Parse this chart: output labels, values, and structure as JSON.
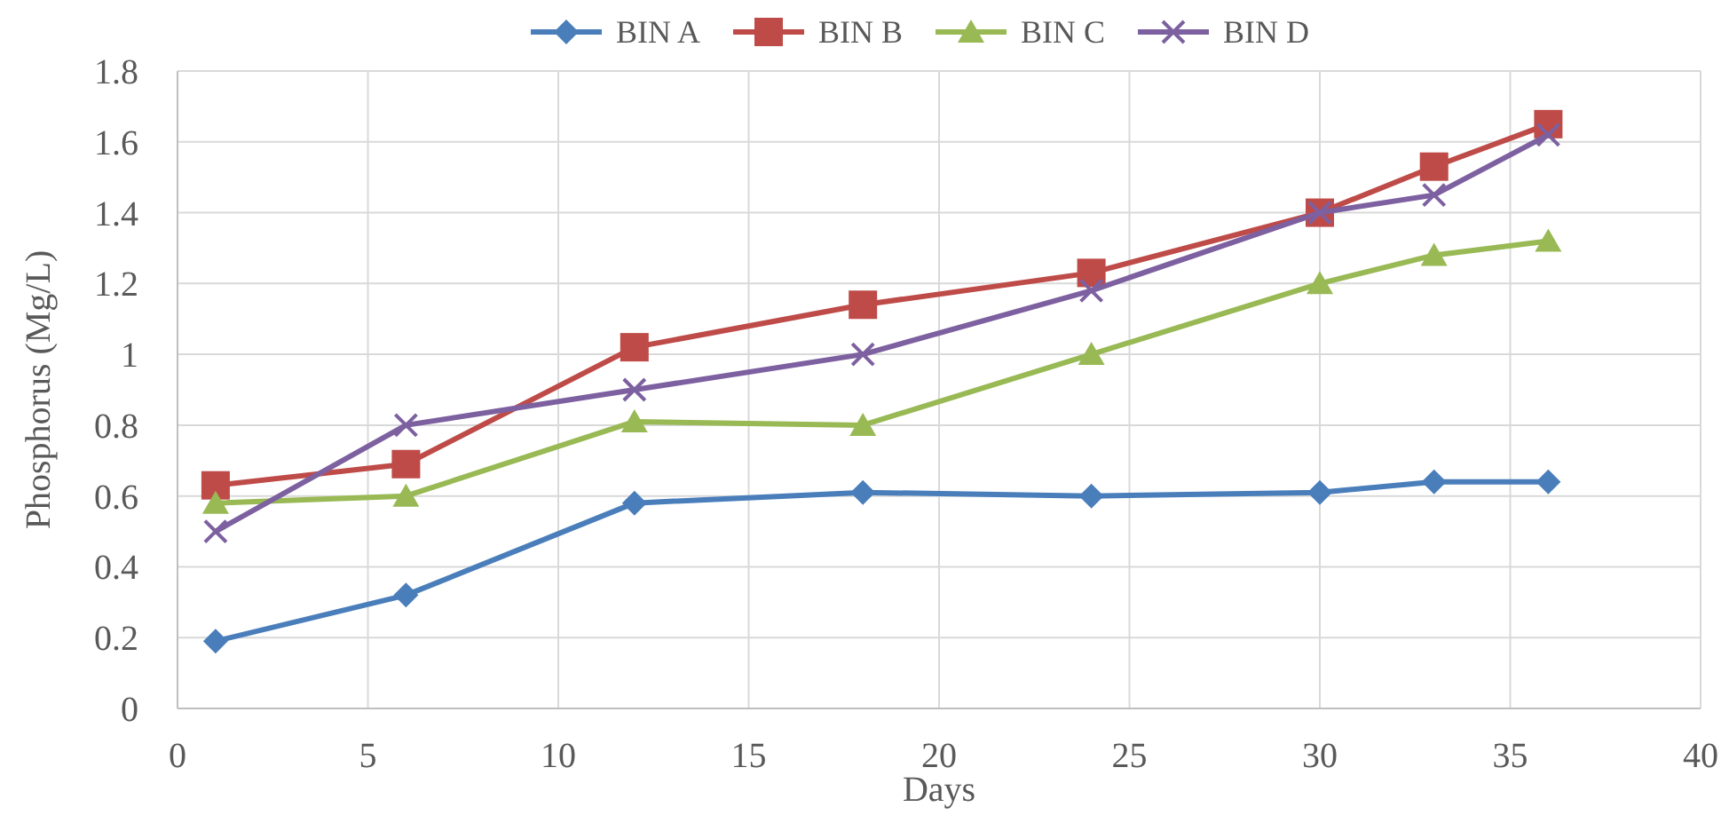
{
  "chart_data": {
    "type": "line",
    "xlabel": "Days",
    "ylabel": "Phosphorus (Mg/L)",
    "x": [
      1,
      6,
      12,
      18,
      24,
      30,
      33,
      36
    ],
    "xlim": [
      0,
      40
    ],
    "xticks": [
      0,
      5,
      10,
      15,
      20,
      25,
      30,
      35,
      40
    ],
    "ylim": [
      0,
      1.8
    ],
    "yticks": [
      0,
      0.2,
      0.4,
      0.6,
      0.8,
      1,
      1.2,
      1.4,
      1.6,
      1.8
    ],
    "grid": true,
    "legend": "top",
    "series": [
      {
        "name": "BIN A",
        "color": "#4a7ebb",
        "marker": "diamond",
        "values": [
          0.19,
          0.32,
          0.58,
          0.61,
          0.6,
          0.61,
          0.64,
          0.64
        ]
      },
      {
        "name": "BIN B",
        "color": "#be4b48",
        "marker": "square",
        "values": [
          0.63,
          0.69,
          1.02,
          1.14,
          1.23,
          1.4,
          1.53,
          1.65
        ]
      },
      {
        "name": "BIN C",
        "color": "#98b954",
        "marker": "triangle",
        "values": [
          0.58,
          0.6,
          0.81,
          0.8,
          1.0,
          1.2,
          1.28,
          1.32
        ]
      },
      {
        "name": "BIN D",
        "color": "#7d60a0",
        "marker": "cross",
        "values": [
          0.5,
          0.8,
          0.9,
          1.0,
          1.18,
          1.4,
          1.45,
          1.62
        ]
      }
    ]
  }
}
